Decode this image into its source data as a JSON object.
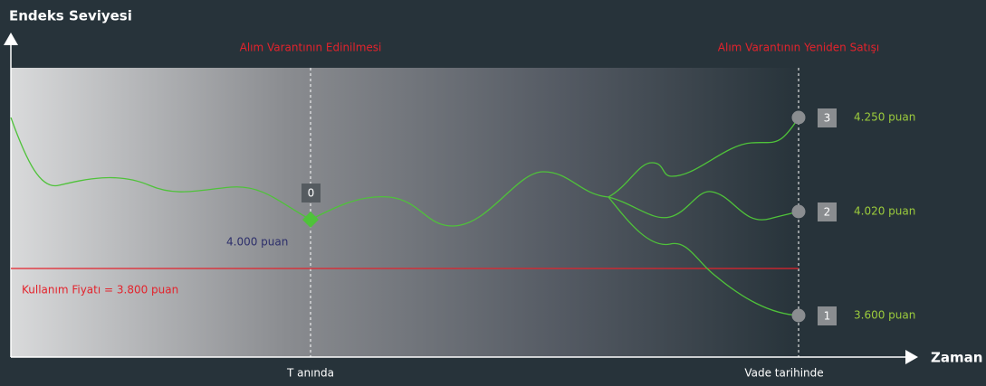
{
  "header": {
    "y_axis_title": "Endeks Seviyesi",
    "x_axis_title": "Zaman"
  },
  "events": [
    "Alım Varantının Edinilmesi",
    "Alım Varantının Yeniden Satışı"
  ],
  "time_labels": [
    "T anında",
    "Vade tarihinde"
  ],
  "strike_label": "Kullanım Fiyatı = 3.800 puan",
  "entry": {
    "box": "0",
    "label": "4.000 puan"
  },
  "outcomes": [
    {
      "box": "3",
      "label": "4.250 puan"
    },
    {
      "box": "2",
      "label": "4.020 puan"
    },
    {
      "box": "1",
      "label": "3.600 puan"
    }
  ]
}
